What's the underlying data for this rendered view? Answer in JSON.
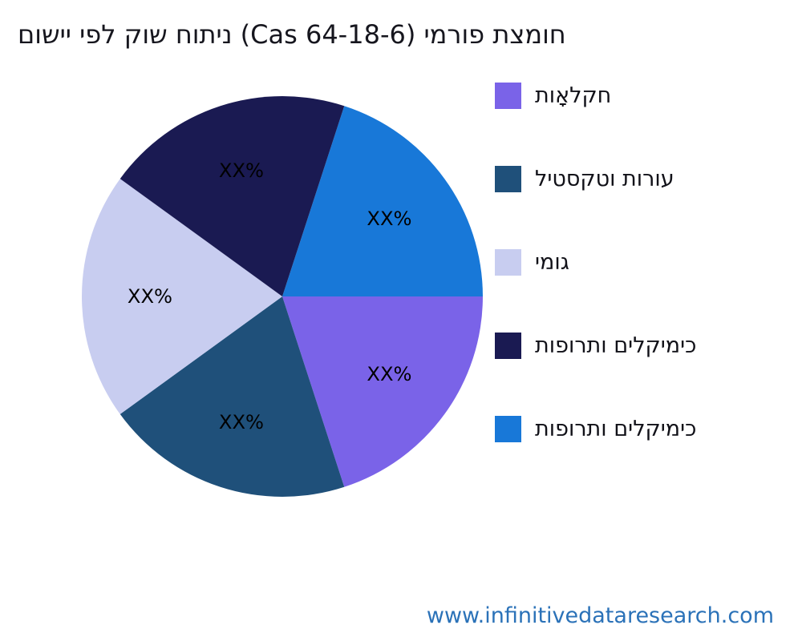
{
  "page": {
    "background": "#ffffff"
  },
  "title": {
    "text": "םושיי יפל קוש חותינ (Cas 64-18-6) ימרופ תצמוח",
    "color": "#16161e"
  },
  "watermark": {
    "text": "www.infinitivedataresearch.com",
    "color": "#2b72b8"
  },
  "legend": {
    "position": "right",
    "items": [
      {
        "label": "תואָלקח",
        "color": "#7A63E8"
      },
      {
        "label": "ליטסקטו תורוע",
        "color": "#1F507A"
      },
      {
        "label": "ימוג",
        "color": "#C8CDF0"
      },
      {
        "label": "תופורתו םילקימיכ",
        "color": "#1A1A52"
      },
      {
        "label": "תופורתו םילקימיכ",
        "color": "#1878D8"
      }
    ]
  },
  "chart_data": {
    "type": "pie",
    "title": "םושיי יפל קוש חותינ (Cas 64-18-6) ימרופ תצמוח",
    "start_angle_deg": 18,
    "direction": "clockwise",
    "legend_position": "right",
    "slices": [
      {
        "label": "תופורתו םילקימיכ",
        "display": "XX%",
        "value": 20,
        "color": "#1878D8"
      },
      {
        "label": "תואָלקח",
        "display": "XX%",
        "value": 20,
        "color": "#7A63E8"
      },
      {
        "label": "ליטסקטו תורוע",
        "display": "XX%",
        "value": 20,
        "color": "#1F507A"
      },
      {
        "label": "ימוג",
        "display": "XX%",
        "value": 20,
        "color": "#C8CDF0"
      },
      {
        "label": "תופורתו םילקימיכ",
        "display": "XX%",
        "value": 20,
        "color": "#1A1A52"
      }
    ]
  }
}
